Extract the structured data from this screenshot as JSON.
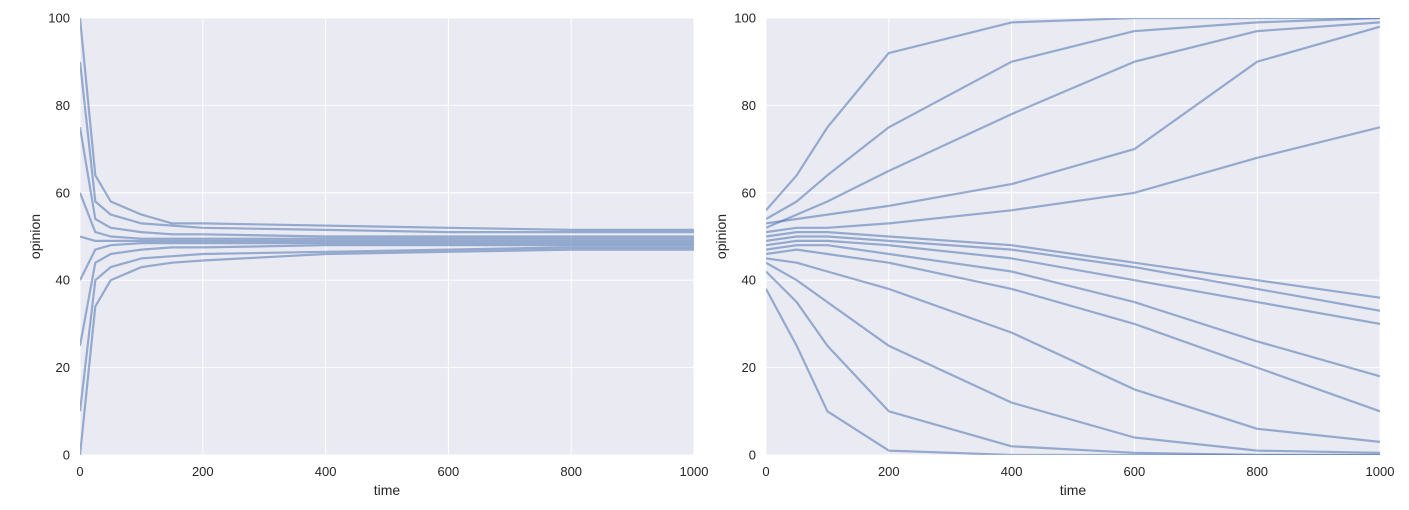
{
  "chart_data": [
    {
      "type": "line",
      "title": "",
      "xlabel": "time",
      "ylabel": "opinion",
      "xlim": [
        0,
        1000
      ],
      "ylim": [
        0,
        100
      ],
      "xticks": [
        "0",
        "200",
        "400",
        "600",
        "800",
        "1000"
      ],
      "yticks": [
        "0",
        "20",
        "40",
        "60",
        "80",
        "100"
      ],
      "grid": true,
      "legend": "none",
      "style": {
        "background": "#EAEAF2",
        "grid_color": "#FFFFFF",
        "line_color": "#4C72B0"
      },
      "series": [
        {
          "x": [
            0,
            25,
            50,
            100,
            150,
            200,
            400,
            600,
            800,
            1000
          ],
          "values": [
            100,
            64,
            58,
            55,
            53,
            53,
            52.5,
            52,
            51.5,
            51.5
          ]
        },
        {
          "x": [
            0,
            25,
            50,
            100,
            150,
            200,
            400,
            600,
            800,
            1000
          ],
          "values": [
            90,
            58,
            55,
            53,
            52.5,
            52,
            51.5,
            51,
            51,
            51
          ]
        },
        {
          "x": [
            0,
            25,
            50,
            100,
            150,
            200,
            400,
            600,
            800,
            1000
          ],
          "values": [
            75,
            54,
            52,
            51,
            50.5,
            50.5,
            50,
            50,
            50,
            50
          ]
        },
        {
          "x": [
            0,
            25,
            50,
            100,
            150,
            200,
            400,
            600,
            800,
            1000
          ],
          "values": [
            60,
            51,
            50,
            49.5,
            49.5,
            49.5,
            49.5,
            49.5,
            49.5,
            49.5
          ]
        },
        {
          "x": [
            0,
            25,
            50,
            100,
            150,
            200,
            400,
            600,
            800,
            1000
          ],
          "values": [
            50,
            49,
            49,
            49,
            49,
            49,
            49,
            49,
            49,
            49
          ]
        },
        {
          "x": [
            0,
            25,
            50,
            100,
            150,
            200,
            400,
            600,
            800,
            1000
          ],
          "values": [
            40,
            47,
            48,
            48.5,
            48.5,
            48.5,
            48.5,
            48.5,
            48.5,
            48.5
          ]
        },
        {
          "x": [
            0,
            25,
            50,
            100,
            150,
            200,
            400,
            600,
            800,
            1000
          ],
          "values": [
            25,
            44,
            46,
            47,
            47.5,
            47.5,
            48,
            48,
            48,
            48
          ]
        },
        {
          "x": [
            0,
            25,
            50,
            100,
            150,
            200,
            400,
            600,
            800,
            1000
          ],
          "values": [
            10,
            40,
            43,
            45,
            45.5,
            46,
            46.5,
            47,
            47.5,
            47.5
          ]
        },
        {
          "x": [
            0,
            25,
            50,
            100,
            150,
            200,
            400,
            600,
            800,
            1000
          ],
          "values": [
            0,
            34,
            40,
            43,
            44,
            44.5,
            46,
            46.5,
            47,
            47
          ]
        }
      ]
    },
    {
      "type": "line",
      "title": "",
      "xlabel": "time",
      "ylabel": "opinion",
      "xlim": [
        0,
        1000
      ],
      "ylim": [
        0,
        100
      ],
      "xticks": [
        "0",
        "200",
        "400",
        "600",
        "800",
        "1000"
      ],
      "yticks": [
        "0",
        "20",
        "40",
        "60",
        "80",
        "100"
      ],
      "grid": true,
      "legend": "none",
      "style": {
        "background": "#EAEAF2",
        "grid_color": "#FFFFFF",
        "line_color": "#4C72B0"
      },
      "series": [
        {
          "x": [
            0,
            50,
            100,
            200,
            400,
            600,
            800,
            1000
          ],
          "values": [
            50,
            51,
            51,
            50,
            48,
            44,
            40,
            36
          ]
        },
        {
          "x": [
            0,
            50,
            100,
            200,
            400,
            600,
            800,
            1000
          ],
          "values": [
            48,
            49,
            49,
            48,
            45,
            40,
            35,
            30
          ]
        },
        {
          "x": [
            0,
            50,
            100,
            200,
            400,
            600,
            800,
            1000
          ],
          "values": [
            46,
            47,
            46,
            44,
            38,
            30,
            20,
            10
          ]
        },
        {
          "x": [
            0,
            50,
            100,
            200,
            400,
            600,
            800,
            1000
          ],
          "values": [
            45,
            44,
            42,
            38,
            28,
            15,
            6,
            3
          ]
        },
        {
          "x": [
            0,
            50,
            100,
            200,
            400,
            600,
            800,
            1000
          ],
          "values": [
            44,
            40,
            35,
            25,
            12,
            4,
            1,
            0.5
          ]
        },
        {
          "x": [
            0,
            50,
            100,
            200,
            400,
            600,
            800,
            1000
          ],
          "values": [
            42,
            35,
            25,
            10,
            2,
            0.5,
            0,
            0
          ]
        },
        {
          "x": [
            0,
            50,
            100,
            200,
            400,
            600,
            800,
            1000
          ],
          "values": [
            38,
            25,
            10,
            1,
            0,
            0,
            0,
            0
          ]
        },
        {
          "x": [
            0,
            50,
            100,
            200,
            400,
            600,
            800,
            1000
          ],
          "values": [
            52,
            55,
            58,
            65,
            78,
            90,
            97,
            99
          ]
        },
        {
          "x": [
            0,
            50,
            100,
            200,
            400,
            600,
            800,
            1000
          ],
          "values": [
            54,
            58,
            64,
            75,
            90,
            97,
            99,
            100
          ]
        },
        {
          "x": [
            0,
            50,
            100,
            200,
            400,
            600,
            800,
            1000
          ],
          "values": [
            56,
            64,
            75,
            92,
            99,
            100,
            100,
            100
          ]
        },
        {
          "x": [
            0,
            50,
            100,
            200,
            400,
            600,
            800,
            1000
          ],
          "values": [
            53,
            54,
            55,
            57,
            62,
            70,
            90,
            98
          ]
        },
        {
          "x": [
            0,
            50,
            100,
            200,
            400,
            600,
            800,
            1000
          ],
          "values": [
            51,
            52,
            52,
            53,
            56,
            60,
            68,
            75
          ]
        },
        {
          "x": [
            0,
            50,
            100,
            200,
            400,
            600,
            800,
            1000
          ],
          "values": [
            49,
            50,
            50,
            49,
            47,
            43,
            38,
            33
          ]
        },
        {
          "x": [
            0,
            50,
            100,
            200,
            400,
            600,
            800,
            1000
          ],
          "values": [
            47,
            48,
            48,
            46,
            42,
            35,
            26,
            18
          ]
        }
      ]
    }
  ]
}
